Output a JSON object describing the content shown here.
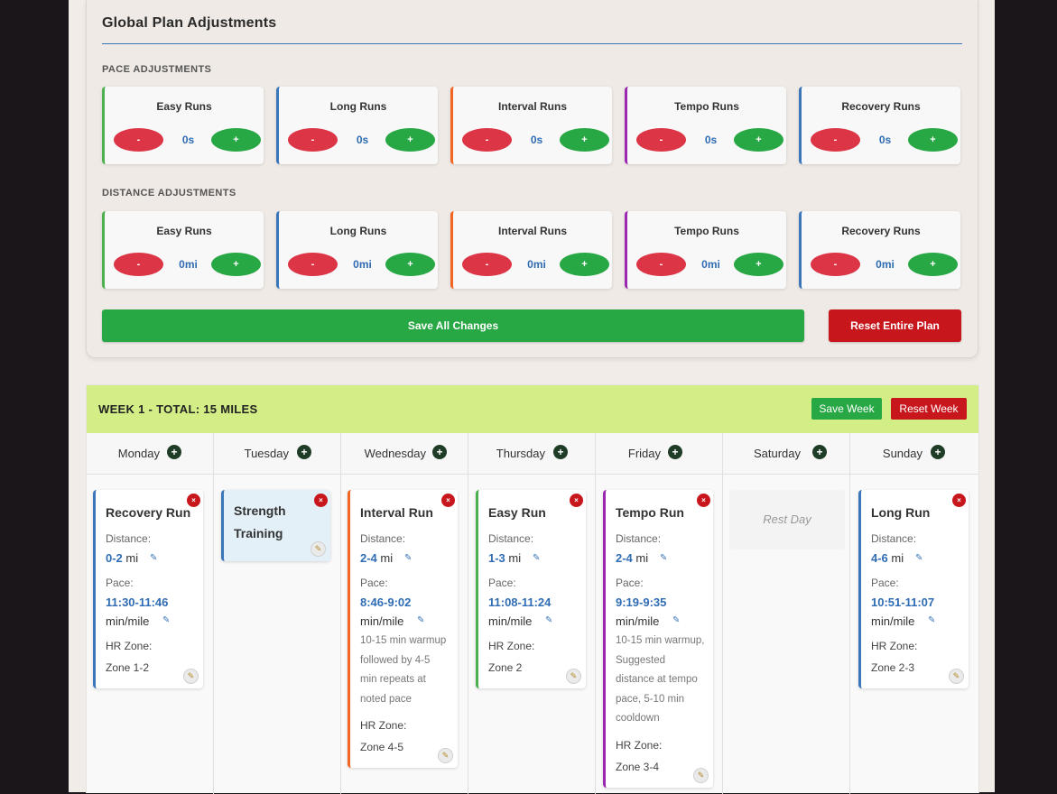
{
  "colors": {
    "easy": "#4caf50",
    "long": "#3a76b8",
    "interval": "#f26522",
    "tempo": "#9c27b0",
    "recovery": "#3a76b8",
    "strength": "#3a76b8",
    "save": "#28a745",
    "reset": "#c8161d"
  },
  "panel": {
    "title": "Global Plan Adjustments",
    "pace_label": "PACE ADJUSTMENTS",
    "distance_label": "DISTANCE ADJUSTMENTS",
    "minus_label": "-",
    "plus_label": "+",
    "pace": [
      {
        "name": "Easy Runs",
        "value": "0s"
      },
      {
        "name": "Long Runs",
        "value": "0s"
      },
      {
        "name": "Interval Runs",
        "value": "0s"
      },
      {
        "name": "Tempo Runs",
        "value": "0s"
      },
      {
        "name": "Recovery Runs",
        "value": "0s"
      }
    ],
    "distance": [
      {
        "name": "Easy Runs",
        "value": "0mi"
      },
      {
        "name": "Long Runs",
        "value": "0mi"
      },
      {
        "name": "Interval Runs",
        "value": "0mi"
      },
      {
        "name": "Tempo Runs",
        "value": "0mi"
      },
      {
        "name": "Recovery Runs",
        "value": "0mi"
      }
    ],
    "save_all": "Save All Changes",
    "reset_plan": "Reset Entire Plan"
  },
  "week": {
    "title": "WEEK 1 - TOTAL: 15 MILES",
    "save_week": "Save Week",
    "reset_week": "Reset Week",
    "add_symbol": "+",
    "delete_symbol": "×",
    "days": [
      "Monday",
      "Tuesday",
      "Wednesday",
      "Thursday",
      "Friday",
      "Saturday",
      "Sunday"
    ],
    "labels": {
      "distance": "Distance:",
      "pace": "Pace:",
      "hr": "HR Zone:",
      "mi": "mi",
      "min_mile": "min/mile"
    },
    "rest_day": "Rest Day",
    "workouts": {
      "monday": {
        "title": "Recovery Run",
        "distance": "0-2",
        "pace": "11:30-11:46",
        "hr": "Zone 1-2"
      },
      "tuesday": {
        "title_line1": "Strength",
        "title_line2": "Training"
      },
      "wednesday": {
        "title": "Interval Run",
        "distance": "2-4",
        "pace": "8:46-9:02",
        "notes": [
          "10-15 min warmup",
          "followed by 4-5",
          "min repeats at",
          "noted pace"
        ],
        "hr": "Zone 4-5"
      },
      "thursday": {
        "title": "Easy Run",
        "distance": "1-3",
        "pace": "11:08-11:24",
        "hr": "Zone 2"
      },
      "friday": {
        "title": "Tempo Run",
        "distance": "2-4",
        "pace": "9:19-9:35",
        "notes": [
          "10-15 min warmup,",
          "Suggested",
          "distance at tempo",
          "pace, 5-10 min",
          "cooldown"
        ],
        "hr": "Zone 3-4"
      },
      "sunday": {
        "title": "Long Run",
        "distance": "4-6",
        "pace": "10:51-11:07",
        "hr": "Zone 2-3"
      }
    }
  }
}
